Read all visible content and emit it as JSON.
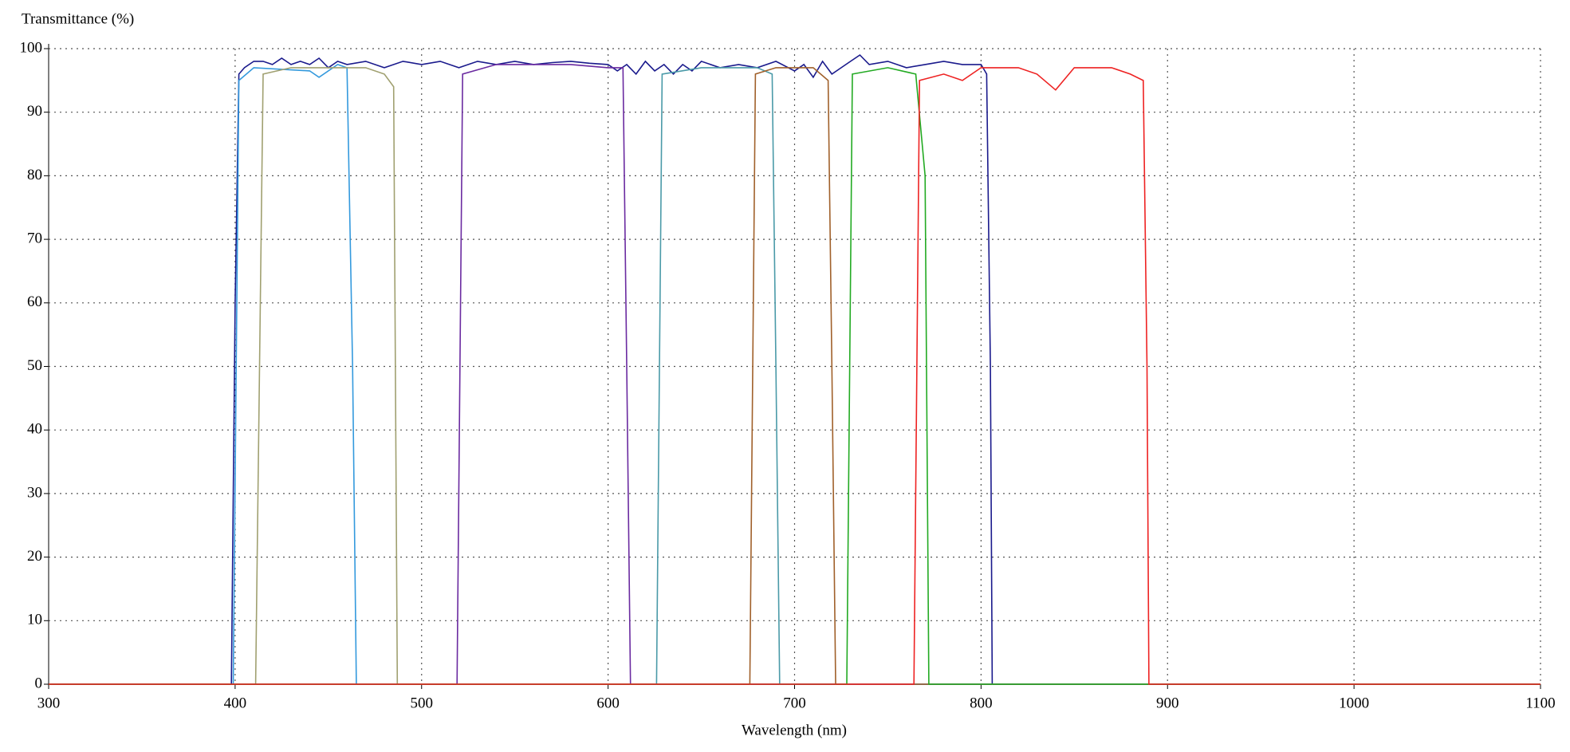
{
  "chart_data": {
    "type": "line",
    "y_label": "Transmittance (%)",
    "x_label": "Wavelength (nm)",
    "xlim": [
      300,
      1100
    ],
    "xticks": [
      300,
      400,
      500,
      600,
      700,
      800,
      900,
      1000,
      1100
    ],
    "ylim": [
      0,
      100
    ],
    "yticks": [
      0,
      10,
      20,
      30,
      40,
      50,
      60,
      70,
      80,
      90,
      100
    ],
    "grid": true,
    "series": [
      {
        "color": "#1a1a8c",
        "x": [
          300,
          398,
          400,
          402,
          405,
          410,
          415,
          420,
          425,
          430,
          435,
          440,
          445,
          450,
          455,
          460,
          470,
          480,
          490,
          500,
          510,
          520,
          530,
          540,
          550,
          560,
          570,
          580,
          590,
          600,
          605,
          610,
          615,
          620,
          625,
          630,
          635,
          640,
          645,
          650,
          660,
          670,
          680,
          690,
          700,
          705,
          710,
          715,
          720,
          725,
          730,
          735,
          740,
          750,
          760,
          770,
          780,
          790,
          800,
          803,
          805,
          806,
          1100
        ],
        "values": [
          0,
          0,
          60,
          96,
          97,
          98,
          98,
          97.5,
          98.5,
          97.5,
          98,
          97.5,
          98.5,
          97,
          98,
          97.5,
          98,
          97,
          98,
          97.5,
          98,
          97,
          98,
          97.5,
          98,
          97.5,
          97.8,
          98,
          97.7,
          97.5,
          96.5,
          97.5,
          96,
          98,
          96.5,
          97.5,
          96,
          97.5,
          96.5,
          98,
          97,
          97.5,
          97,
          98,
          96.5,
          97.5,
          95.5,
          98,
          96,
          97,
          98,
          99,
          97.5,
          98,
          97,
          97.5,
          98,
          97.5,
          97.5,
          96,
          50,
          0,
          0
        ]
      },
      {
        "color": "#3399dd",
        "x": [
          300,
          399,
          402,
          410,
          440,
          445,
          455,
          460,
          463,
          465,
          1100
        ],
        "values": [
          0,
          0,
          95,
          97,
          96.5,
          95.5,
          97.5,
          97,
          50,
          0,
          0
        ]
      },
      {
        "color": "#a0a070",
        "x": [
          300,
          411,
          415,
          430,
          450,
          470,
          480,
          485,
          487,
          1100
        ],
        "values": [
          0,
          0,
          96,
          97,
          97,
          97,
          96,
          94,
          0,
          0
        ]
      },
      {
        "color": "#6a2aa0",
        "x": [
          300,
          519,
          522,
          540,
          580,
          600,
          608,
          610,
          612,
          1100
        ],
        "values": [
          0,
          0,
          96,
          97.5,
          97.5,
          97,
          97,
          50,
          0,
          0
        ]
      },
      {
        "color": "#4a9aa8",
        "x": [
          300,
          626,
          629,
          650,
          680,
          688,
          690,
          692,
          1100
        ],
        "values": [
          0,
          0,
          96,
          97,
          97,
          96,
          50,
          0,
          0
        ]
      },
      {
        "color": "#a0602a",
        "x": [
          300,
          676,
          679,
          690,
          710,
          718,
          720,
          722,
          1100
        ],
        "values": [
          0,
          0,
          96,
          97,
          97,
          95,
          50,
          0,
          0
        ]
      },
      {
        "color": "#22aa22",
        "x": [
          300,
          728,
          731,
          750,
          765,
          770,
          772,
          1100
        ],
        "values": [
          0,
          0,
          96,
          97,
          96,
          80,
          0,
          0
        ]
      },
      {
        "color": "#ee2222",
        "x": [
          300,
          764,
          767,
          780,
          790,
          800,
          820,
          830,
          840,
          850,
          870,
          880,
          887,
          889,
          890,
          1100
        ],
        "values": [
          0,
          0,
          95,
          96,
          95,
          97,
          97,
          96,
          93.5,
          97,
          97,
          96,
          95,
          50,
          0,
          0
        ]
      }
    ]
  }
}
